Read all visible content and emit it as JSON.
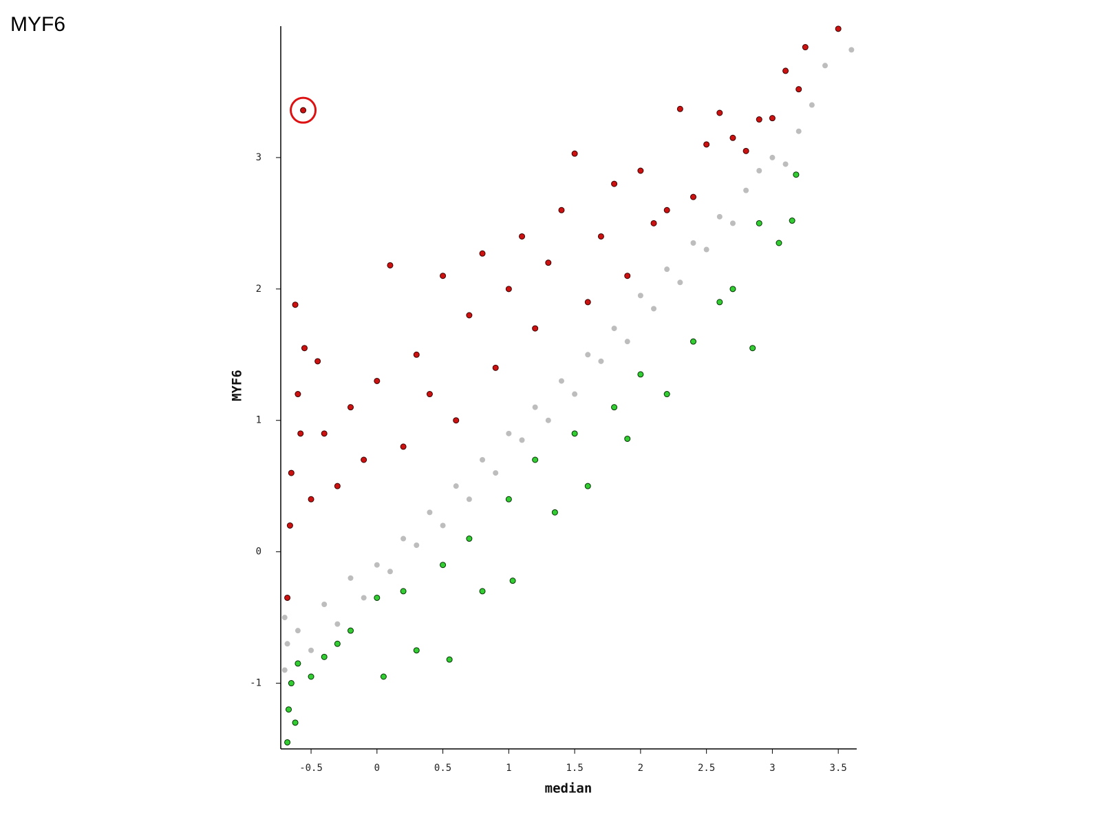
{
  "chart_data": {
    "type": "scatter",
    "title": "MYF6",
    "x_label": "median",
    "y_label": "MYF6",
    "xlim": [
      -0.73,
      3.64
    ],
    "ylim": [
      -1.5,
      4.0
    ],
    "xticks": [
      -0.5,
      0,
      0.5,
      1,
      1.5,
      2,
      2.5,
      3,
      3.5
    ],
    "yticks": [
      -1,
      0,
      1,
      2,
      3
    ],
    "series": [
      {
        "color": "#bdbdbd",
        "edgecolor": "none",
        "x": [
          -0.7,
          -0.7,
          -0.68,
          -0.6,
          -0.5,
          -0.4,
          -0.3,
          -0.2,
          -0.1,
          0,
          0.1,
          0.2,
          0.3,
          0.4,
          0.5,
          0.6,
          0.7,
          0.8,
          0.9,
          1.0,
          1.1,
          1.2,
          1.3,
          1.4,
          1.5,
          1.6,
          1.7,
          1.8,
          1.9,
          2.0,
          2.1,
          2.2,
          2.3,
          2.4,
          2.5,
          2.6,
          2.7,
          2.8,
          2.9,
          3.0,
          3.1,
          3.2,
          3.3,
          3.4,
          3.6
        ],
        "y": [
          -0.9,
          -0.5,
          -0.7,
          -0.6,
          -0.75,
          -0.4,
          -0.55,
          -0.2,
          -0.35,
          -0.1,
          -0.15,
          0.1,
          0.05,
          0.3,
          0.2,
          0.5,
          0.4,
          0.7,
          0.6,
          0.9,
          0.85,
          1.1,
          1.0,
          1.3,
          1.2,
          1.5,
          1.45,
          1.7,
          1.6,
          1.95,
          1.85,
          2.15,
          2.05,
          2.35,
          2.3,
          2.55,
          2.5,
          2.75,
          2.9,
          3.0,
          2.95,
          3.2,
          3.4,
          3.7,
          3.82
        ]
      },
      {
        "color": "#cc1111",
        "edgecolor": "#3a0000",
        "x": [
          -0.68,
          -0.66,
          -0.65,
          -0.62,
          -0.6,
          -0.58,
          -0.55,
          -0.5,
          -0.45,
          -0.4,
          -0.3,
          -0.2,
          -0.1,
          0,
          0.1,
          0.2,
          0.3,
          0.4,
          0.5,
          0.6,
          0.7,
          0.8,
          0.9,
          1.0,
          1.1,
          1.2,
          1.3,
          1.4,
          1.5,
          1.6,
          1.7,
          1.8,
          1.9,
          2.0,
          2.1,
          2.2,
          2.3,
          2.4,
          2.5,
          2.6,
          2.7,
          2.8,
          2.9,
          3.0,
          3.1,
          3.2,
          3.25,
          3.5,
          -0.56
        ],
        "y": [
          -0.35,
          0.2,
          0.6,
          1.88,
          1.2,
          0.9,
          1.55,
          0.4,
          1.45,
          0.9,
          0.5,
          1.1,
          0.7,
          1.3,
          2.18,
          0.8,
          1.5,
          1.2,
          2.1,
          1.0,
          1.8,
          2.27,
          1.4,
          2.0,
          2.4,
          1.7,
          2.2,
          2.6,
          3.03,
          1.9,
          2.4,
          2.8,
          2.1,
          2.9,
          2.5,
          2.6,
          3.37,
          2.7,
          3.1,
          3.34,
          3.15,
          3.05,
          3.29,
          3.3,
          3.66,
          3.52,
          3.84,
          3.98,
          3.36
        ]
      },
      {
        "color": "#33cc33",
        "edgecolor": "#003300",
        "x": [
          -0.68,
          -0.67,
          -0.65,
          -0.62,
          -0.6,
          -0.5,
          -0.4,
          -0.3,
          -0.2,
          0,
          0.05,
          0.2,
          0.3,
          0.5,
          0.55,
          0.7,
          0.8,
          1.0,
          1.03,
          1.2,
          1.35,
          1.5,
          1.6,
          1.8,
          1.9,
          2.0,
          2.2,
          2.4,
          2.6,
          2.7,
          2.85,
          2.9,
          3.05,
          3.15,
          3.18
        ],
        "y": [
          -1.45,
          -1.2,
          -1.0,
          -1.3,
          -0.85,
          -0.95,
          -0.8,
          -0.7,
          -0.6,
          -0.35,
          -0.95,
          -0.3,
          -0.75,
          -0.1,
          -0.82,
          0.1,
          -0.3,
          0.4,
          -0.22,
          0.7,
          0.3,
          0.9,
          0.5,
          1.1,
          0.86,
          1.35,
          1.2,
          1.6,
          1.9,
          2.0,
          1.55,
          2.5,
          2.35,
          2.52,
          2.87
        ]
      }
    ],
    "highlight": {
      "x": -0.56,
      "y": 3.36,
      "color": "#dd1111"
    }
  }
}
